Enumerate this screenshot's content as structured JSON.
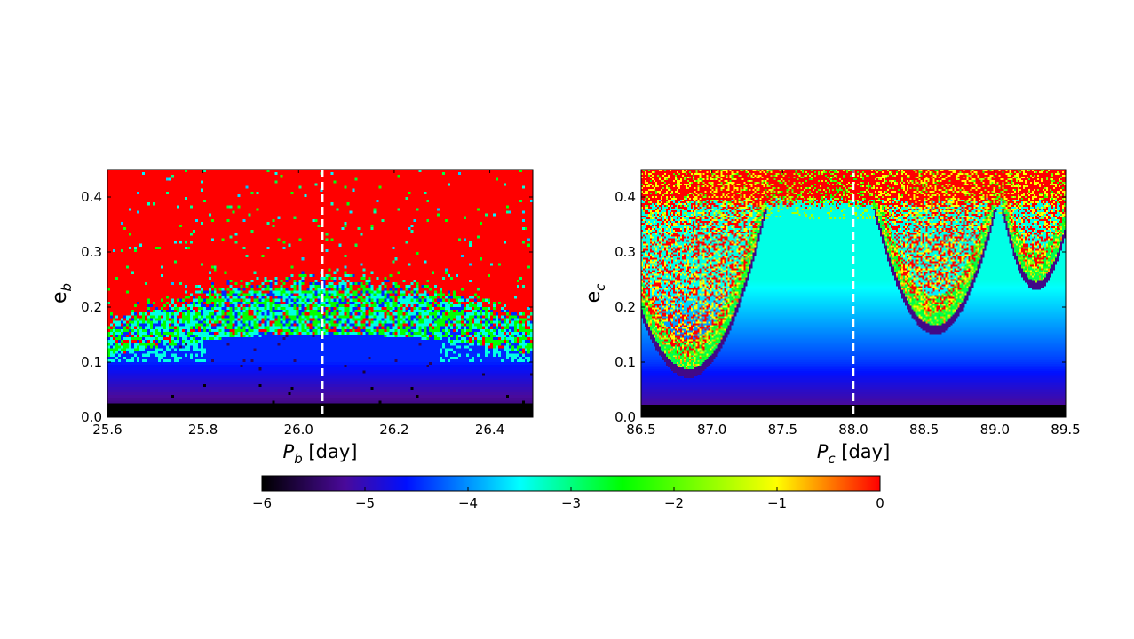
{
  "chart_data": [
    {
      "type": "heatmap",
      "xlabel_main": "P",
      "xlabel_sub": "b",
      "xlabel_unit": " [day]",
      "ylabel_main": "e",
      "ylabel_sub": "b",
      "xlim": [
        25.6,
        26.49
      ],
      "ylim": [
        0.0,
        0.45
      ],
      "xticks": [
        "25.6",
        "25.8",
        "26.0",
        "26.2",
        "26.4"
      ],
      "xtick_values": [
        25.6,
        25.8,
        26.0,
        26.2,
        26.4
      ],
      "yticks": [
        "0.0",
        "0.1",
        "0.2",
        "0.3",
        "0.4"
      ],
      "ytick_values": [
        0.0,
        0.1,
        0.2,
        0.3,
        0.4
      ],
      "reference_line_x": 26.05,
      "reference_line_style": "dashed white",
      "description_of_field": {
        "stable_region_upper_e_center": 0.22,
        "stable_region_upper_e_edges": 0.15,
        "chaotic_region_value": 0
      }
    },
    {
      "type": "heatmap",
      "xlabel_main": "P",
      "xlabel_sub": "c",
      "xlabel_unit": " [day]",
      "ylabel_main": "e",
      "ylabel_sub": "c",
      "xlim": [
        86.5,
        89.5
      ],
      "ylim": [
        0.0,
        0.45
      ],
      "xticks": [
        "86.5",
        "87.0",
        "87.5",
        "88.0",
        "88.5",
        "89.0",
        "89.5"
      ],
      "xtick_values": [
        86.5,
        87.0,
        87.5,
        88.0,
        88.5,
        89.0,
        89.5
      ],
      "yticks": [
        "0.0",
        "0.1",
        "0.2",
        "0.3",
        "0.4"
      ],
      "ytick_values": [
        0.0,
        0.1,
        0.2,
        0.3,
        0.4
      ],
      "reference_line_x": 88.0,
      "reference_line_style": "dashed white",
      "resonance_centers": [
        86.83,
        88.58,
        89.3
      ]
    }
  ],
  "colorbar": {
    "range": [
      -6,
      0
    ],
    "ticks": [
      "−6",
      "−5",
      "−4",
      "−3",
      "−2",
      "−1",
      "0"
    ],
    "tick_values": [
      -6,
      -5,
      -4,
      -3,
      -2,
      -1,
      0
    ],
    "colors": [
      {
        "v": -6,
        "c": "#000000"
      },
      {
        "v": -5.2,
        "c": "#4a0a9a"
      },
      {
        "v": -4.6,
        "c": "#0010ff"
      },
      {
        "v": -3.5,
        "c": "#00ffff"
      },
      {
        "v": -2.5,
        "c": "#00ff00"
      },
      {
        "v": -1.0,
        "c": "#ffff00"
      },
      {
        "v": 0,
        "c": "#ff0000"
      }
    ]
  }
}
